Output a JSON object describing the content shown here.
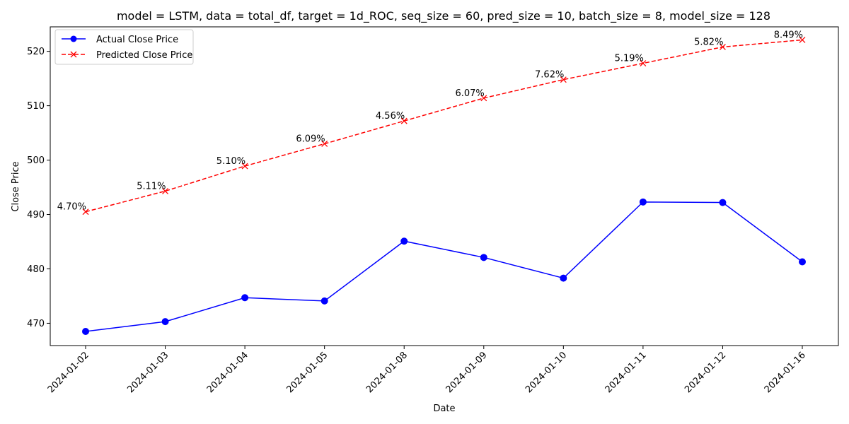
{
  "chart_data": {
    "type": "line",
    "title": "model = LSTM, data = total_df, target = 1d_ROC, seq_size = 60, pred_size = 10, batch_size = 8, model_size = 128",
    "xlabel": "Date",
    "ylabel": "Close Price",
    "categories": [
      "2024-01-02",
      "2024-01-03",
      "2024-01-04",
      "2024-01-05",
      "2024-01-08",
      "2024-01-09",
      "2024-01-10",
      "2024-01-11",
      "2024-01-12",
      "2024-01-16"
    ],
    "yticks": [
      470,
      480,
      490,
      500,
      510,
      520
    ],
    "ylim": [
      465.9,
      524.5
    ],
    "grid": false,
    "legend": "top-left",
    "series": [
      {
        "name": "Actual Close Price",
        "color": "#0000ff",
        "style": "solid",
        "marker": "circle",
        "values": [
          468.5,
          470.3,
          474.7,
          474.1,
          485.1,
          482.1,
          478.3,
          492.3,
          492.2,
          481.3
        ]
      },
      {
        "name": "Predicted Close Price",
        "color": "#ff0000",
        "style": "dashed",
        "marker": "x",
        "values": [
          490.5,
          494.3,
          498.9,
          503.0,
          507.2,
          511.4,
          514.8,
          517.8,
          520.8,
          522.1
        ],
        "labels": [
          "4.70%",
          "5.11%",
          "5.10%",
          "6.09%",
          "4.56%",
          "6.07%",
          "7.62%",
          "5.19%",
          "5.82%",
          "8.49%"
        ]
      }
    ]
  }
}
